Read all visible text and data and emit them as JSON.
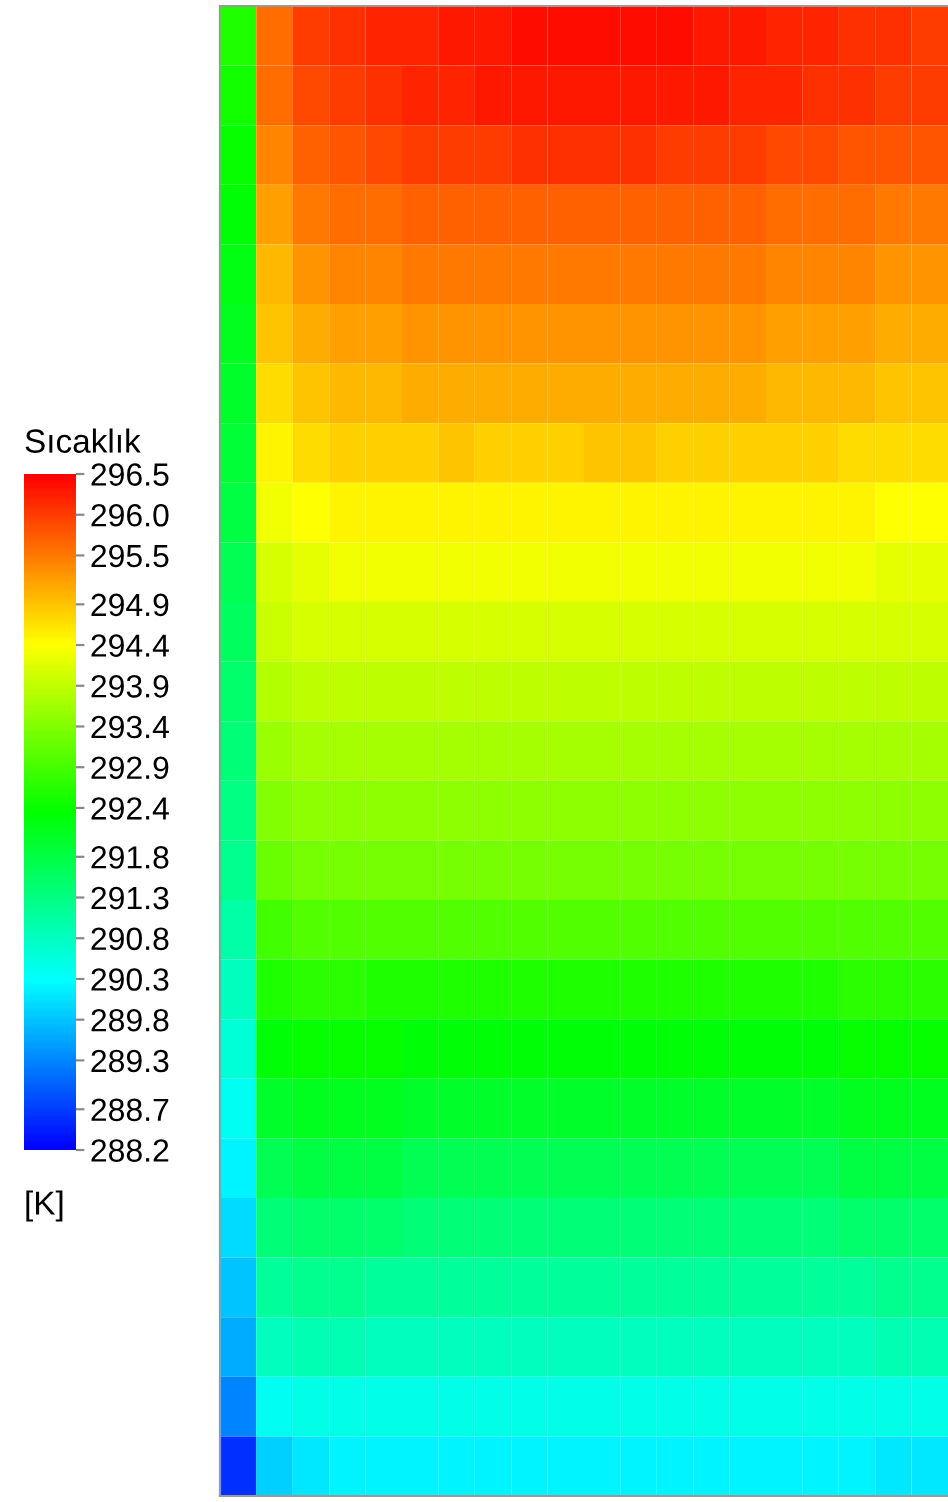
{
  "chart_data": {
    "type": "heatmap",
    "clabel": "Sıcaklık",
    "annotations": [
      "[K]"
    ],
    "categories": [
      null,
      null,
      null,
      null,
      null,
      null,
      null,
      null,
      null,
      null,
      null,
      null,
      null,
      null,
      null,
      null,
      null,
      null,
      null,
      null
    ],
    "y_categories": [
      null,
      null,
      null,
      null,
      null,
      null,
      null,
      null,
      null,
      null,
      null,
      null,
      null,
      null,
      null,
      null,
      null,
      null,
      null,
      null,
      null,
      null,
      null,
      null,
      null
    ],
    "cells": [
      [
        292.6,
        295.6,
        296.0,
        296.1,
        296.2,
        296.2,
        296.3,
        296.3,
        296.4,
        296.4,
        296.4,
        296.4,
        296.4,
        296.3,
        296.3,
        296.2,
        296.2,
        296.1,
        296.1,
        296.0
      ],
      [
        292.5,
        295.6,
        295.9,
        296.0,
        296.1,
        296.2,
        296.2,
        296.3,
        296.3,
        296.3,
        296.3,
        296.3,
        296.3,
        296.3,
        296.2,
        296.2,
        296.1,
        296.1,
        296.0,
        296.0
      ],
      [
        292.4,
        295.4,
        295.7,
        295.8,
        295.9,
        296.0,
        296.0,
        296.0,
        296.1,
        296.1,
        296.1,
        296.1,
        296.0,
        296.0,
        296.0,
        295.9,
        295.9,
        295.8,
        295.8,
        295.8
      ],
      [
        292.3,
        295.2,
        295.5,
        295.6,
        295.6,
        295.7,
        295.7,
        295.7,
        295.7,
        295.7,
        295.7,
        295.7,
        295.7,
        295.7,
        295.7,
        295.6,
        295.6,
        295.6,
        295.5,
        295.5
      ],
      [
        292.2,
        295.0,
        295.3,
        295.4,
        295.4,
        295.5,
        295.5,
        295.5,
        295.5,
        295.5,
        295.5,
        295.5,
        295.5,
        295.5,
        295.5,
        295.4,
        295.4,
        295.4,
        295.3,
        295.3
      ],
      [
        292.1,
        294.9,
        295.1,
        295.2,
        295.2,
        295.3,
        295.3,
        295.3,
        295.3,
        295.3,
        295.3,
        295.3,
        295.3,
        295.3,
        295.3,
        295.2,
        295.2,
        295.2,
        295.1,
        295.1
      ],
      [
        292.0,
        294.7,
        294.9,
        295.0,
        295.0,
        295.1,
        295.1,
        295.1,
        295.1,
        295.1,
        295.1,
        295.1,
        295.1,
        295.1,
        295.1,
        295.0,
        295.0,
        295.0,
        294.9,
        294.9
      ],
      [
        291.9,
        294.5,
        294.7,
        294.8,
        294.8,
        294.8,
        294.9,
        294.8,
        294.8,
        294.8,
        294.9,
        294.9,
        294.8,
        294.8,
        294.8,
        294.8,
        294.8,
        294.7,
        294.7,
        294.7
      ],
      [
        291.8,
        294.3,
        294.4,
        294.5,
        294.5,
        294.5,
        294.5,
        294.5,
        294.5,
        294.5,
        294.5,
        294.5,
        294.5,
        294.5,
        294.5,
        294.5,
        294.5,
        294.5,
        294.4,
        294.4
      ],
      [
        291.7,
        294.1,
        294.2,
        294.3,
        294.3,
        294.3,
        294.3,
        294.3,
        294.3,
        294.3,
        294.3,
        294.3,
        294.3,
        294.3,
        294.3,
        294.3,
        294.3,
        294.3,
        294.2,
        294.2
      ],
      [
        291.6,
        294.0,
        294.1,
        294.1,
        294.1,
        294.1,
        294.1,
        294.1,
        294.1,
        294.1,
        294.1,
        294.1,
        294.1,
        294.1,
        294.1,
        294.1,
        294.1,
        294.1,
        294.1,
        294.1
      ],
      [
        291.5,
        293.8,
        293.9,
        293.9,
        293.9,
        293.9,
        293.9,
        293.9,
        293.9,
        293.9,
        293.9,
        293.9,
        293.9,
        293.9,
        293.9,
        293.9,
        293.9,
        293.9,
        293.9,
        293.9
      ],
      [
        291.4,
        293.6,
        293.7,
        293.7,
        293.7,
        293.7,
        293.7,
        293.7,
        293.7,
        293.7,
        293.7,
        293.7,
        293.7,
        293.7,
        293.7,
        293.7,
        293.7,
        293.7,
        293.7,
        293.7
      ],
      [
        291.3,
        293.4,
        293.5,
        293.5,
        293.5,
        293.5,
        293.5,
        293.5,
        293.5,
        293.5,
        293.5,
        293.5,
        293.5,
        293.5,
        293.5,
        293.5,
        293.5,
        293.5,
        293.5,
        293.5
      ],
      [
        291.2,
        293.2,
        293.3,
        293.3,
        293.3,
        293.3,
        293.3,
        293.3,
        293.3,
        293.3,
        293.3,
        293.3,
        293.3,
        293.3,
        293.3,
        293.3,
        293.3,
        293.3,
        293.3,
        293.3
      ],
      [
        291.0,
        292.9,
        293.0,
        293.0,
        293.0,
        293.0,
        293.0,
        293.0,
        293.0,
        293.0,
        293.0,
        293.0,
        293.0,
        293.0,
        293.0,
        293.0,
        293.0,
        293.0,
        293.0,
        293.0
      ],
      [
        290.8,
        292.6,
        292.7,
        292.7,
        292.6,
        292.6,
        292.6,
        292.6,
        292.6,
        292.6,
        292.6,
        292.6,
        292.6,
        292.6,
        292.6,
        292.6,
        292.6,
        292.7,
        292.7,
        292.7
      ],
      [
        290.6,
        292.3,
        292.4,
        292.4,
        292.4,
        292.3,
        292.3,
        292.3,
        292.3,
        292.3,
        292.3,
        292.3,
        292.3,
        292.3,
        292.3,
        292.3,
        292.3,
        292.4,
        292.4,
        292.4
      ],
      [
        290.4,
        292.0,
        292.1,
        292.1,
        292.1,
        292.0,
        292.0,
        292.0,
        292.0,
        292.0,
        292.0,
        292.0,
        292.0,
        292.0,
        292.0,
        292.0,
        292.0,
        292.1,
        292.1,
        292.1
      ],
      [
        290.2,
        291.7,
        291.8,
        291.8,
        291.8,
        291.7,
        291.7,
        291.7,
        291.7,
        291.7,
        291.7,
        291.7,
        291.7,
        291.7,
        291.7,
        291.7,
        291.7,
        291.8,
        291.8,
        291.8
      ],
      [
        290.0,
        291.4,
        291.5,
        291.5,
        291.5,
        291.4,
        291.4,
        291.4,
        291.4,
        291.4,
        291.4,
        291.4,
        291.4,
        291.4,
        291.4,
        291.4,
        291.4,
        291.5,
        291.5,
        291.5
      ],
      [
        289.8,
        291.1,
        291.2,
        291.2,
        291.1,
        291.1,
        291.1,
        291.1,
        291.1,
        291.1,
        291.1,
        291.1,
        291.1,
        291.1,
        291.1,
        291.1,
        291.1,
        291.1,
        291.2,
        291.2
      ],
      [
        289.6,
        290.8,
        290.9,
        290.9,
        290.8,
        290.8,
        290.8,
        290.8,
        290.8,
        290.8,
        290.8,
        290.8,
        290.8,
        290.8,
        290.8,
        290.8,
        290.8,
        290.8,
        290.9,
        290.9
      ],
      [
        289.3,
        290.4,
        290.5,
        290.5,
        290.5,
        290.5,
        290.5,
        290.5,
        290.5,
        290.5,
        290.5,
        290.5,
        290.5,
        290.5,
        290.5,
        290.5,
        290.5,
        290.5,
        290.5,
        290.5
      ],
      [
        288.6,
        289.9,
        290.1,
        290.2,
        290.2,
        290.2,
        290.2,
        290.2,
        290.2,
        290.2,
        290.2,
        290.2,
        290.2,
        290.2,
        290.2,
        290.2,
        290.2,
        290.2,
        290.1,
        290.1
      ]
    ],
    "clim": [
      288.2,
      296.5
    ],
    "cticks": [
      288.2,
      288.7,
      289.3,
      289.8,
      290.3,
      290.8,
      291.3,
      291.8,
      292.4,
      292.9,
      293.4,
      293.9,
      294.4,
      294.9,
      295.5,
      {
        "value": 296.0,
        "label": "296.0"
      },
      296.5
    ]
  }
}
